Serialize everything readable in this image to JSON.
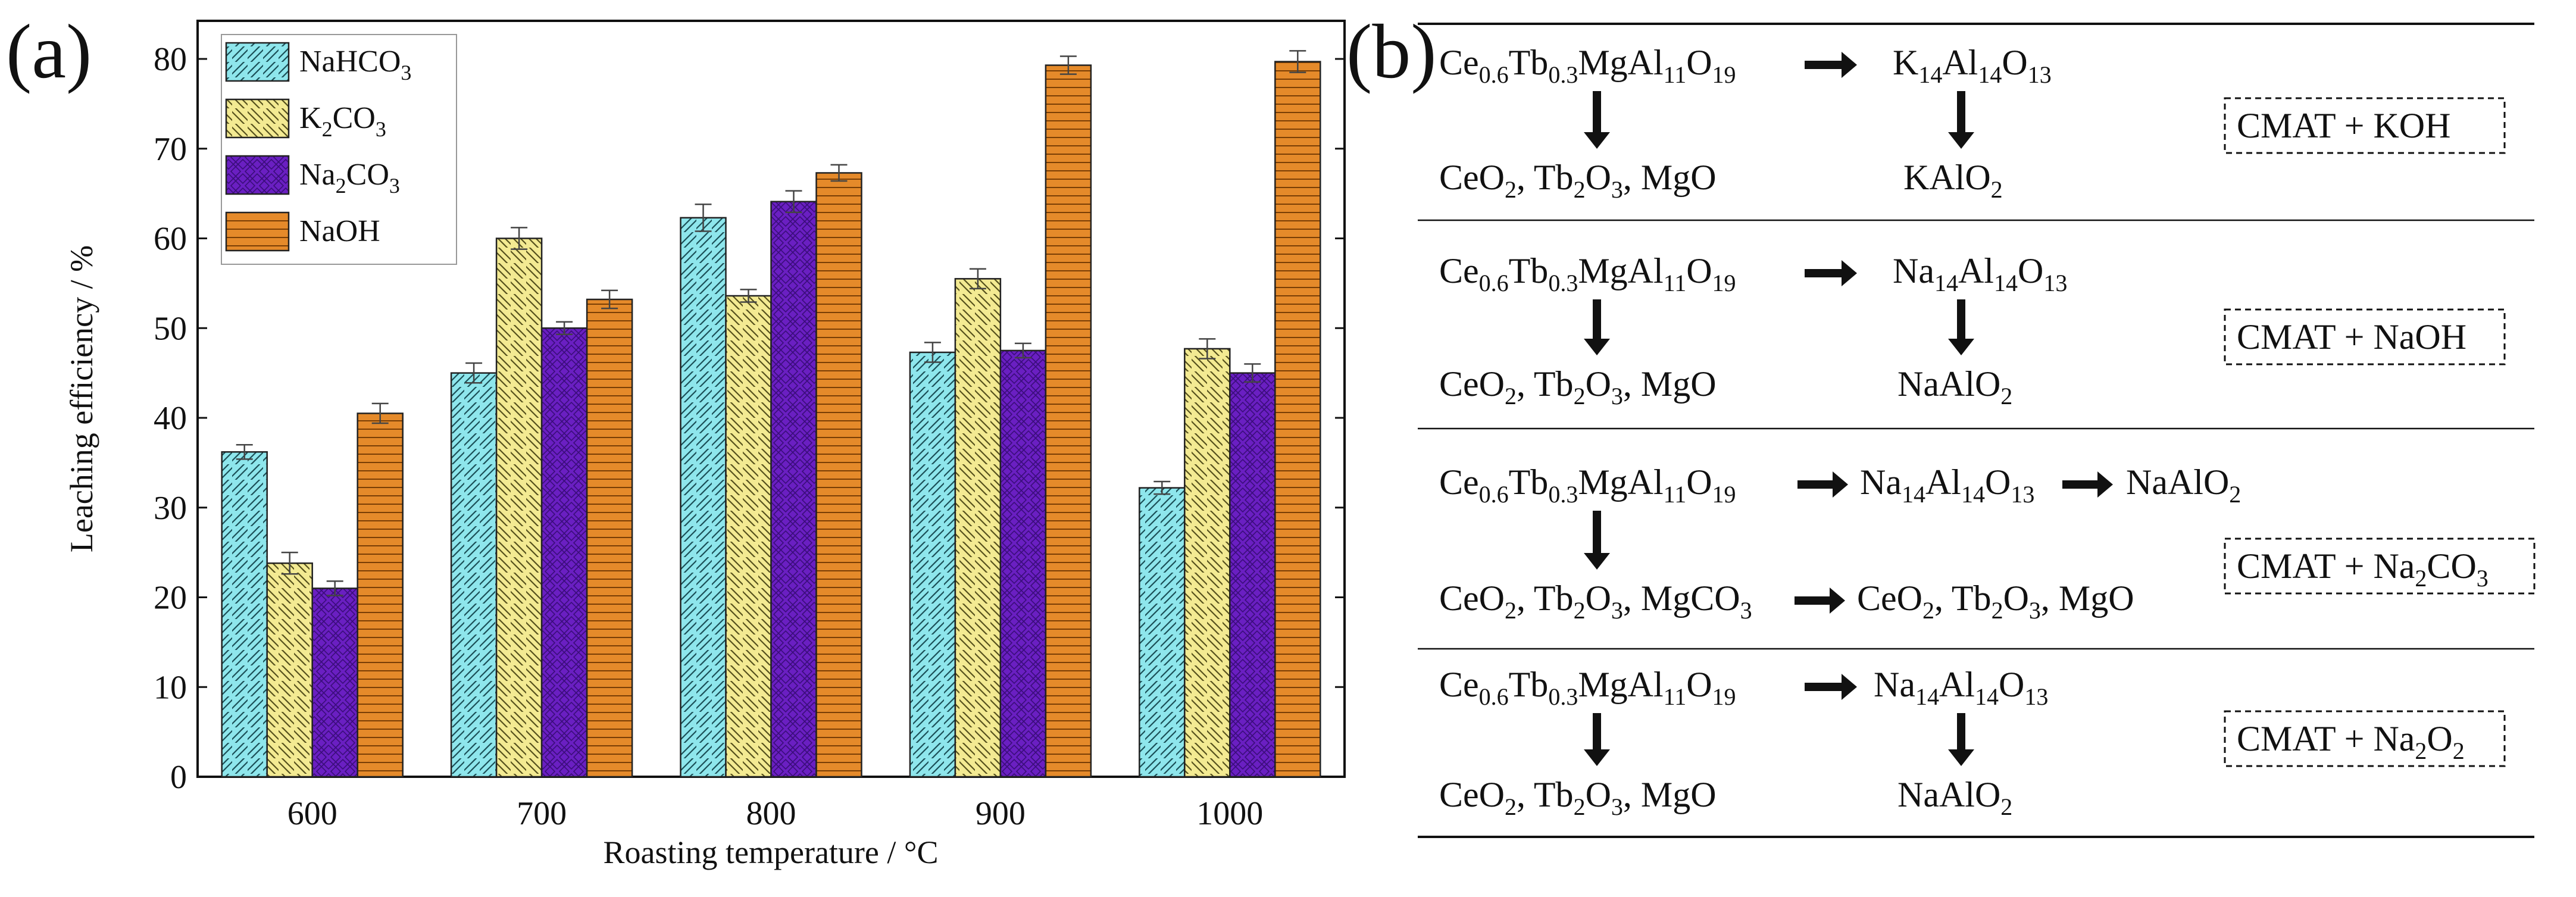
{
  "panel_a": {
    "label": "(a)"
  },
  "panel_b": {
    "label": "(b)"
  },
  "chart_data": {
    "type": "bar",
    "title": "",
    "xlabel": "Roasting temperature / °C",
    "ylabel": "Leaching efficiency / %",
    "categories": [
      "600",
      "700",
      "800",
      "900",
      "1000"
    ],
    "ylim": [
      0,
      85
    ],
    "yticks": [
      0,
      10,
      20,
      30,
      40,
      50,
      60,
      70,
      80
    ],
    "legend_position": "top-left",
    "series": [
      {
        "name": "NaHCO3",
        "label_main": "NaHCO",
        "label_sub": "3",
        "values": [
          36.2,
          45.0,
          62.3,
          47.3,
          32.2
        ],
        "errors": [
          0.8,
          1.1,
          1.5,
          1.1,
          0.7
        ],
        "color": "#8ee6ec",
        "pattern": "diag-fwd"
      },
      {
        "name": "K2CO3",
        "label_main": "K",
        "label_sub": "2",
        "label_tail": "CO",
        "label_sub2": "3",
        "values": [
          23.8,
          60.0,
          53.6,
          55.5,
          47.7
        ],
        "errors": [
          1.2,
          1.2,
          0.7,
          1.1,
          1.1
        ],
        "color": "#f3ea92",
        "pattern": "diag-back"
      },
      {
        "name": "Na2CO3",
        "label_main": "Na",
        "label_sub": "2",
        "label_tail": "CO",
        "label_sub2": "3",
        "values": [
          21.0,
          50.0,
          64.1,
          47.5,
          45.0
        ],
        "errors": [
          0.8,
          0.7,
          1.2,
          0.8,
          1.0
        ],
        "color": "#6a1fc2",
        "pattern": "cross"
      },
      {
        "name": "NaOH",
        "label_main": "NaOH",
        "values": [
          40.5,
          53.2,
          67.3,
          79.3,
          79.7
        ],
        "errors": [
          1.1,
          1.0,
          0.9,
          1.0,
          1.2
        ],
        "color": "#e58a2a",
        "pattern": "horiz"
      }
    ]
  },
  "reactions": [
    {
      "id": "koh",
      "box": "CMAT + KOH",
      "start": [
        "Ce",
        {
          "s": "0.6"
        },
        "Tb",
        {
          "s": "0.3"
        },
        "MgAl",
        {
          "s": "11"
        },
        "O",
        {
          "s": "19"
        }
      ],
      "intermediate": [
        "K",
        {
          "s": "14"
        },
        "Al",
        {
          "s": "14"
        },
        "O",
        {
          "s": "13"
        }
      ],
      "product_left": [
        "CeO",
        {
          "s": "2"
        },
        ", Tb",
        {
          "s": "2"
        },
        "O",
        {
          "s": "3"
        },
        ", MgO"
      ],
      "product_right": [
        "KAlO",
        {
          "s": "2"
        }
      ]
    },
    {
      "id": "naoh",
      "box": "CMAT + NaOH",
      "start": [
        "Ce",
        {
          "s": "0.6"
        },
        "Tb",
        {
          "s": "0.3"
        },
        "MgAl",
        {
          "s": "11"
        },
        "O",
        {
          "s": "19"
        }
      ],
      "intermediate": [
        "Na",
        {
          "s": "14"
        },
        "Al",
        {
          "s": "14"
        },
        "O",
        {
          "s": "13"
        }
      ],
      "product_left": [
        "CeO",
        {
          "s": "2"
        },
        ", Tb",
        {
          "s": "2"
        },
        "O",
        {
          "s": "3"
        },
        ", MgO"
      ],
      "product_right": [
        "NaAlO",
        {
          "s": "2"
        }
      ]
    },
    {
      "id": "na2co3",
      "box": "CMAT + Na₂CO₃",
      "box_parts": [
        "CMAT + Na",
        {
          "s": "2"
        },
        "CO",
        {
          "s": "3"
        }
      ],
      "start": [
        "Ce",
        {
          "s": "0.6"
        },
        "Tb",
        {
          "s": "0.3"
        },
        "MgAl",
        {
          "s": "11"
        },
        "O",
        {
          "s": "19"
        }
      ],
      "intermediate": [
        "Na",
        {
          "s": "14"
        },
        "Al",
        {
          "s": "14"
        },
        "O",
        {
          "s": "13"
        }
      ],
      "intermediate2": [
        "NaAlO",
        {
          "s": "2"
        }
      ],
      "product_left": [
        "CeO",
        {
          "s": "2"
        },
        ", Tb",
        {
          "s": "2"
        },
        "O",
        {
          "s": "3"
        },
        ", MgCO",
        {
          "s": "3"
        }
      ],
      "product_right": [
        "CeO",
        {
          "s": "2"
        },
        ", Tb",
        {
          "s": "2"
        },
        "O",
        {
          "s": "3"
        },
        ", MgO"
      ]
    },
    {
      "id": "na2o2",
      "box": "CMAT + Na₂O₂",
      "box_parts": [
        "CMAT + Na",
        {
          "s": "2"
        },
        "O",
        {
          "s": "2"
        }
      ],
      "start": [
        "Ce",
        {
          "s": "0.6"
        },
        "Tb",
        {
          "s": "0.3"
        },
        "MgAl",
        {
          "s": "11"
        },
        "O",
        {
          "s": "19"
        }
      ],
      "intermediate": [
        "Na",
        {
          "s": "14"
        },
        "Al",
        {
          "s": "14"
        },
        "O",
        {
          "s": "13"
        }
      ],
      "product_left": [
        "CeO",
        {
          "s": "2"
        },
        ", Tb",
        {
          "s": "2"
        },
        "O",
        {
          "s": "3"
        },
        ", MgO"
      ],
      "product_right": [
        "NaAlO",
        {
          "s": "2"
        }
      ]
    }
  ]
}
